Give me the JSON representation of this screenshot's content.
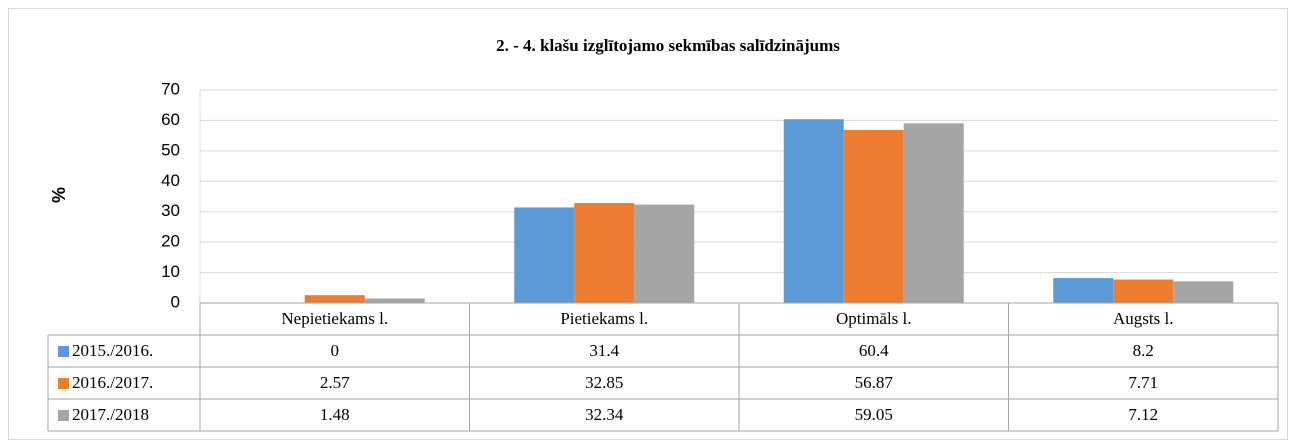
{
  "chart_data": {
    "type": "bar",
    "title": "2. - 4. klašu izglītojamo sekmības salīdzinājums",
    "y_label": "%",
    "categories": [
      "Nepietiekams  l.",
      "Pietiekams  l.",
      "Optimāls l.",
      "Augsts l."
    ],
    "series": [
      {
        "name": "2015./2016.",
        "color": "#5b9bd5",
        "values": [
          0,
          31.4,
          60.4,
          8.2
        ]
      },
      {
        "name": "2016./2017.",
        "color": "#ed7d31",
        "values": [
          2.57,
          32.85,
          56.87,
          7.71
        ]
      },
      {
        "name": "2017./2018",
        "color": "#a5a5a5",
        "values": [
          1.48,
          32.34,
          59.05,
          7.12
        ]
      }
    ],
    "ylim": [
      0,
      70
    ],
    "yticks": [
      0,
      10,
      20,
      30,
      40,
      50,
      60,
      70
    ],
    "grid": true,
    "data_table": true
  }
}
